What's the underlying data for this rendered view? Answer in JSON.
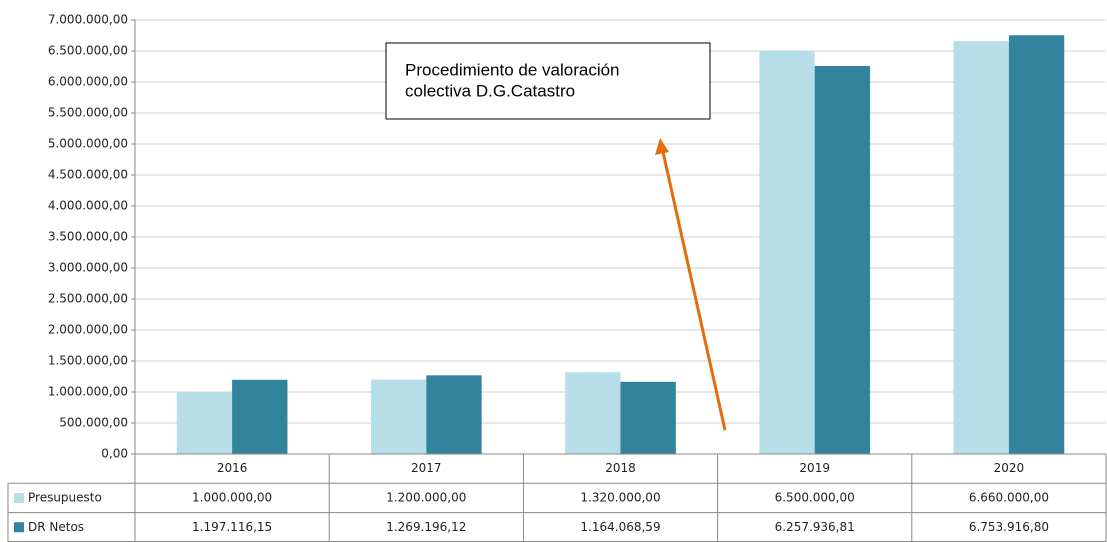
{
  "chart_data": {
    "type": "bar",
    "categories": [
      "2016",
      "2017",
      "2018",
      "2019",
      "2020"
    ],
    "series": [
      {
        "name": "Presupuesto",
        "color": "#b7dde8",
        "values": [
          1000000,
          1200000,
          1320000,
          6500000,
          6660000
        ],
        "value_labels": [
          "1.000.000,00",
          "1.200.000,00",
          "1.320.000,00",
          "6.500.000,00",
          "6.660.000,00"
        ]
      },
      {
        "name": "DR Netos",
        "color": "#31849b",
        "values": [
          1197116.15,
          1269196.12,
          1164068.59,
          6257936.81,
          6753916.8
        ],
        "value_labels": [
          "1.197.116,15",
          "1.269.196,12",
          "1.164.068,59",
          "6.257.936,81",
          "6.753.916,80"
        ]
      }
    ],
    "ylim": [
      0,
      7000000
    ],
    "yticks": [
      {
        "value": 0,
        "label": "0,00"
      },
      {
        "value": 500000,
        "label": "500.000,00"
      },
      {
        "value": 1000000,
        "label": "1.000.000,00"
      },
      {
        "value": 1500000,
        "label": "1.500.000,00"
      },
      {
        "value": 2000000,
        "label": "2.000.000,00"
      },
      {
        "value": 2500000,
        "label": "2.500.000,00"
      },
      {
        "value": 3000000,
        "label": "3.000.000,00"
      },
      {
        "value": 3500000,
        "label": "3.500.000,00"
      },
      {
        "value": 4000000,
        "label": "4.000.000,00"
      },
      {
        "value": 4500000,
        "label": "4.500.000,00"
      },
      {
        "value": 5000000,
        "label": "5.000.000,00"
      },
      {
        "value": 5500000,
        "label": "5.500.000,00"
      },
      {
        "value": 6000000,
        "label": "6.000.000,00"
      },
      {
        "value": 6500000,
        "label": "6.500.000,00"
      },
      {
        "value": 7000000,
        "label": "7.000.000,00"
      }
    ],
    "grid": true,
    "annotation": [
      "Procedimiento de valoración",
      "colectiva D.G.Catastro"
    ]
  }
}
